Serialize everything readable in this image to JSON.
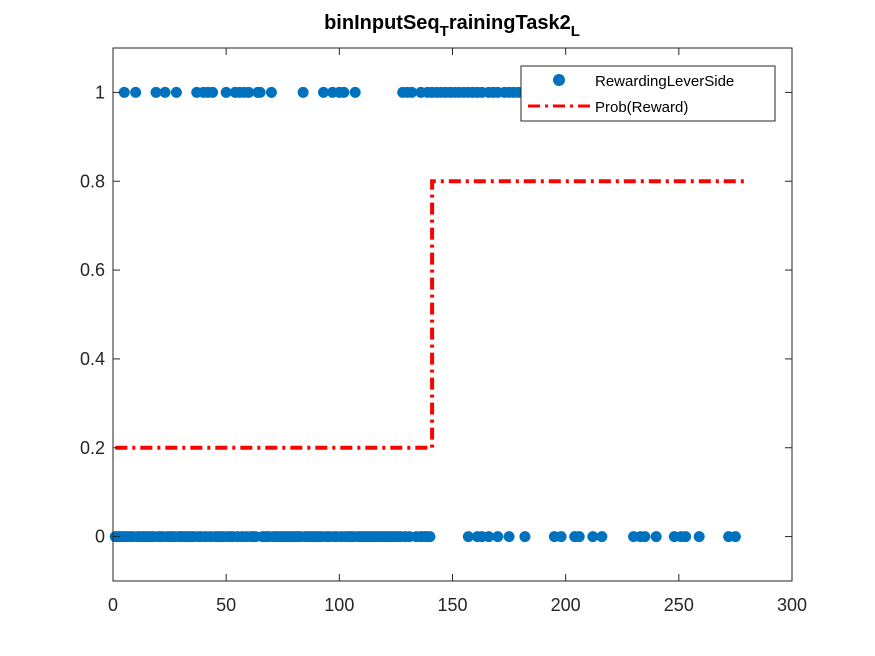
{
  "chart_data": {
    "type": "scatter",
    "title": {
      "main": "binInputSeq",
      "sub1": "T",
      "mid": "rainingTask2",
      "sub2": "L"
    },
    "xlabel": "",
    "ylabel": "",
    "xlim": [
      0,
      300
    ],
    "ylim": [
      -0.1,
      1.1
    ],
    "xticks": [
      0,
      50,
      100,
      150,
      200,
      250,
      300
    ],
    "xtick_labels": [
      "0",
      "50",
      "100",
      "150",
      "200",
      "250",
      "300"
    ],
    "yticks": [
      0,
      0.2,
      0.4,
      0.6,
      0.8,
      1
    ],
    "ytick_labels": [
      "0",
      "0.2",
      "0.4",
      "0.6",
      "0.8",
      "1"
    ],
    "grid": false,
    "legend_position": "top-right",
    "series": [
      {
        "name": "RewardingLeverSide",
        "kind": "markers",
        "color": "#0072BD",
        "x_at_one": [
          5,
          10,
          19,
          23,
          28,
          37,
          40,
          42,
          44,
          50,
          54,
          56,
          58,
          60,
          64,
          65,
          70,
          84,
          93,
          97,
          100,
          102,
          107,
          128,
          130,
          132,
          136,
          139,
          141,
          143,
          145,
          147,
          149,
          151,
          153,
          155,
          157,
          159,
          161,
          163,
          166,
          168,
          170,
          173,
          175,
          177,
          179
        ],
        "x_at_zero": [
          1,
          2,
          3,
          4,
          5,
          6,
          7,
          8,
          9,
          11,
          12,
          13,
          14,
          15,
          16,
          17,
          18,
          20,
          21,
          22,
          24,
          25,
          26,
          27,
          29,
          30,
          31,
          32,
          33,
          34,
          35,
          36,
          38,
          39,
          41,
          43,
          45,
          46,
          47,
          48,
          49,
          51,
          52,
          53,
          55,
          57,
          59,
          61,
          62,
          63,
          66,
          67,
          68,
          69,
          71,
          72,
          73,
          74,
          75,
          76,
          77,
          78,
          79,
          80,
          81,
          82,
          83,
          85,
          86,
          87,
          88,
          89,
          90,
          91,
          92,
          94,
          95,
          96,
          98,
          99,
          101,
          103,
          104,
          105,
          106,
          108,
          109,
          110,
          111,
          112,
          113,
          114,
          115,
          116,
          117,
          118,
          119,
          120,
          121,
          122,
          123,
          124,
          125,
          126,
          127,
          129,
          131,
          134,
          136,
          137,
          138,
          139,
          140,
          157,
          161,
          163,
          166,
          170,
          175,
          182,
          195,
          198,
          204,
          206,
          212,
          216,
          230,
          233,
          235,
          240,
          248,
          251,
          253,
          259,
          272,
          275
        ]
      },
      {
        "name": "Prob(Reward)",
        "kind": "line",
        "color": "#FF0000",
        "dash": "dash-dot",
        "points": [
          [
            1,
            0.2
          ],
          [
            141,
            0.2
          ],
          [
            141,
            0.8
          ],
          [
            280,
            0.8
          ]
        ]
      }
    ]
  }
}
